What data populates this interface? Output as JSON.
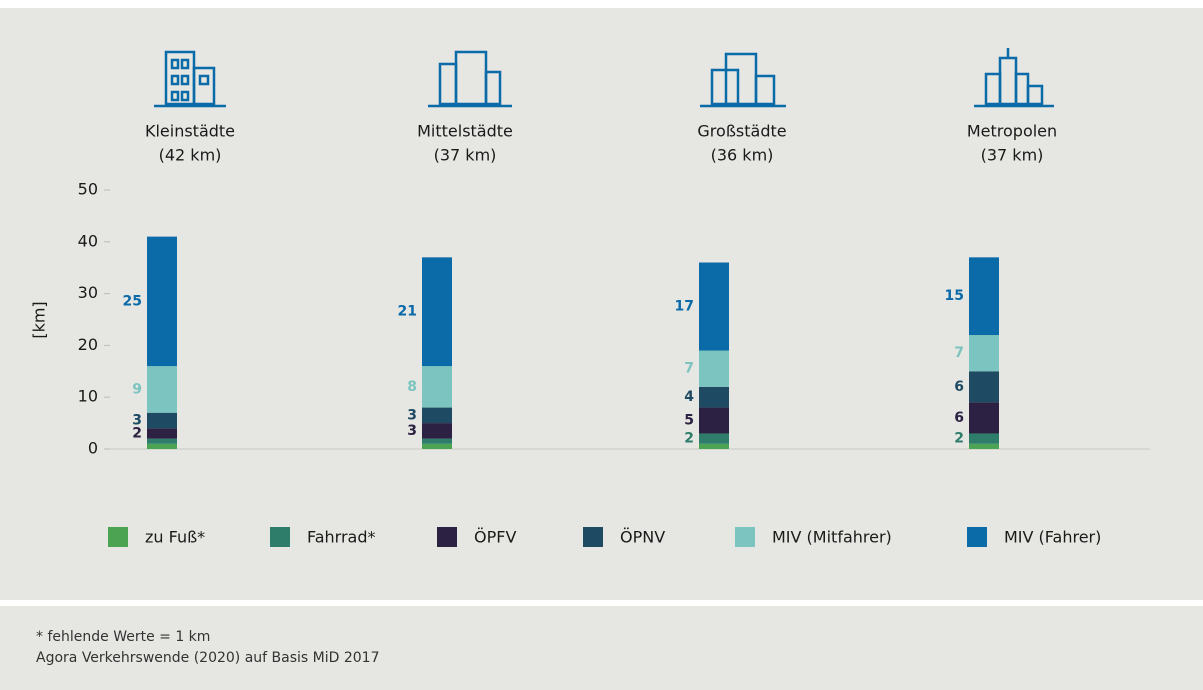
{
  "chart_data": {
    "type": "stacked_bar",
    "categories": [
      "Kleinstädte",
      "Mittelstädte",
      "Großstädte",
      "Metropolen"
    ],
    "category_notes": [
      "(42 km)",
      "(37 km)",
      "(36 km)",
      "(37 km)"
    ],
    "y_label": "[km]",
    "ylim": [
      0,
      50
    ],
    "yticks": [
      0,
      10,
      20,
      30,
      40,
      50
    ],
    "series": [
      {
        "name": "zu Fuß*",
        "color": "#4ca352",
        "values": [
          1,
          1,
          1,
          1
        ],
        "value_labels": [
          null,
          null,
          null,
          null
        ]
      },
      {
        "name": "Fahrrad*",
        "color": "#2e7d6b",
        "values": [
          1,
          1,
          2,
          2
        ],
        "value_labels": [
          null,
          null,
          "2",
          "2"
        ]
      },
      {
        "name": "ÖPFV",
        "color": "#2c2142",
        "values": [
          2,
          3,
          5,
          6
        ],
        "value_labels": [
          "2",
          "3",
          "5",
          "6"
        ]
      },
      {
        "name": "ÖPNV",
        "color": "#1f4a63",
        "values": [
          3,
          3,
          4,
          6
        ],
        "value_labels": [
          "3",
          "3",
          "4",
          "6"
        ]
      },
      {
        "name": "MIV (Mitfahrer)",
        "color": "#7cc4bf",
        "values": [
          9,
          8,
          7,
          7
        ],
        "value_labels": [
          "9",
          "8",
          "7",
          "7"
        ]
      },
      {
        "name": "MIV (Fahrer)",
        "color": "#0b6aa8",
        "values": [
          25,
          21,
          17,
          15
        ],
        "value_labels": [
          "25",
          "21",
          "17",
          "15"
        ]
      }
    ],
    "footnotes": [
      "* fehlende Werte = 1 km",
      "Agora Verkehrswende (2020) auf Basis MiD 2017"
    ]
  }
}
